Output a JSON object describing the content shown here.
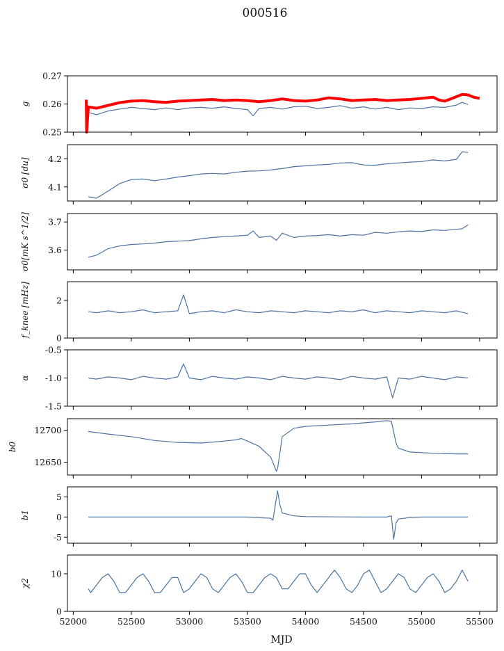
{
  "figure": {
    "title": "000516",
    "xlabel": "MJD",
    "x_ticks": [
      "52000",
      "52500",
      "53000",
      "53500",
      "54000",
      "54500",
      "55000",
      "55500"
    ],
    "colors": {
      "series": "#4c72a0",
      "highlight": "#ff0000",
      "axis": "#000000"
    }
  },
  "chart_data": [
    {
      "type": "line",
      "ylabel": "g",
      "ylim": [
        0.25,
        0.27
      ],
      "y_ticks": [
        "0.27",
        "0.26",
        "0.25"
      ],
      "xlim": [
        51950,
        55650
      ],
      "series": [
        {
          "name": "red",
          "x": [
            52112,
            52115,
            52130,
            52200,
            52300,
            52400,
            52500,
            52600,
            52700,
            52800,
            52900,
            53000,
            53100,
            53200,
            53300,
            53400,
            53500,
            53600,
            53700,
            53800,
            53900,
            54000,
            54100,
            54200,
            54300,
            54400,
            54500,
            54600,
            54700,
            54800,
            54900,
            55000,
            55100,
            55150,
            55200,
            55250,
            55300,
            55350,
            55400,
            55450,
            55500
          ],
          "y": [
            0.2615,
            0.25,
            0.259,
            0.2585,
            0.2595,
            0.2605,
            0.261,
            0.2612,
            0.2608,
            0.2606,
            0.261,
            0.2612,
            0.2614,
            0.2616,
            0.2612,
            0.2614,
            0.2612,
            0.2608,
            0.2612,
            0.2618,
            0.2612,
            0.261,
            0.2614,
            0.2622,
            0.2618,
            0.2612,
            0.2614,
            0.2616,
            0.2612,
            0.2614,
            0.2616,
            0.262,
            0.2624,
            0.2614,
            0.261,
            0.2618,
            0.2626,
            0.2634,
            0.2632,
            0.2624,
            0.262
          ]
        },
        {
          "name": "blue",
          "x": [
            52130,
            52200,
            52300,
            52400,
            52500,
            52600,
            52700,
            52800,
            52900,
            53000,
            53100,
            53200,
            53300,
            53400,
            53500,
            53550,
            53600,
            53700,
            53800,
            53900,
            54000,
            54100,
            54200,
            54300,
            54400,
            54500,
            54600,
            54700,
            54800,
            54900,
            55000,
            55100,
            55200,
            55300,
            55350,
            55400
          ],
          "y": [
            0.257,
            0.2562,
            0.2575,
            0.2582,
            0.2588,
            0.2584,
            0.258,
            0.2586,
            0.258,
            0.2586,
            0.2588,
            0.2585,
            0.259,
            0.2584,
            0.258,
            0.2558,
            0.2584,
            0.2588,
            0.2582,
            0.259,
            0.2592,
            0.2584,
            0.2588,
            0.2594,
            0.2585,
            0.259,
            0.2582,
            0.2588,
            0.258,
            0.2586,
            0.2584,
            0.259,
            0.2588,
            0.2596,
            0.2606,
            0.2598
          ]
        }
      ]
    },
    {
      "type": "line",
      "ylabel": "σ0 [du]",
      "ylim": [
        4.05,
        4.25
      ],
      "y_ticks": [
        "4.2",
        "4.1"
      ],
      "series": [
        {
          "name": "blue",
          "x": [
            52130,
            52200,
            52300,
            52400,
            52500,
            52600,
            52700,
            52800,
            52900,
            53000,
            53100,
            53200,
            53300,
            53400,
            53500,
            53600,
            53700,
            53800,
            53900,
            54000,
            54100,
            54200,
            54300,
            54400,
            54500,
            54600,
            54700,
            54800,
            54900,
            55000,
            55100,
            55200,
            55300,
            55350,
            55400
          ],
          "y": [
            4.065,
            4.06,
            4.085,
            4.112,
            4.126,
            4.128,
            4.122,
            4.128,
            4.135,
            4.14,
            4.146,
            4.148,
            4.146,
            4.152,
            4.156,
            4.157,
            4.16,
            4.165,
            4.172,
            4.175,
            4.178,
            4.18,
            4.185,
            4.186,
            4.178,
            4.177,
            4.182,
            4.185,
            4.188,
            4.19,
            4.196,
            4.192,
            4.198,
            4.225,
            4.222
          ]
        }
      ]
    },
    {
      "type": "line",
      "ylabel": "σ0[mK s^1/2]",
      "ylim": [
        3.53,
        3.73
      ],
      "y_ticks": [
        "3.7",
        "3.6"
      ],
      "series": [
        {
          "name": "blue",
          "x": [
            52130,
            52200,
            52300,
            52400,
            52500,
            52600,
            52700,
            52800,
            52900,
            53000,
            53100,
            53200,
            53300,
            53400,
            53500,
            53550,
            53600,
            53700,
            53750,
            53800,
            53900,
            54000,
            54100,
            54200,
            54300,
            54400,
            54500,
            54600,
            54700,
            54800,
            54900,
            55000,
            55100,
            55200,
            55300,
            55350,
            55400
          ],
          "y": [
            3.575,
            3.582,
            3.605,
            3.615,
            3.62,
            3.622,
            3.625,
            3.63,
            3.632,
            3.634,
            3.64,
            3.645,
            3.648,
            3.65,
            3.653,
            3.668,
            3.645,
            3.65,
            3.635,
            3.66,
            3.645,
            3.65,
            3.652,
            3.655,
            3.65,
            3.655,
            3.653,
            3.663,
            3.66,
            3.665,
            3.668,
            3.666,
            3.672,
            3.67,
            3.674,
            3.676,
            3.69
          ]
        }
      ]
    },
    {
      "type": "line",
      "ylabel": "f_knee [mHz]",
      "ylim": [
        0,
        3
      ],
      "y_ticks": [
        "2",
        "0"
      ],
      "series": [
        {
          "name": "blue",
          "x": [
            52130,
            52200,
            52300,
            52400,
            52500,
            52600,
            52700,
            52800,
            52900,
            52950,
            53000,
            53100,
            53200,
            53300,
            53400,
            53500,
            53600,
            53700,
            53800,
            53900,
            54000,
            54100,
            54200,
            54300,
            54400,
            54500,
            54600,
            54700,
            54800,
            54900,
            55000,
            55100,
            55200,
            55300,
            55400
          ],
          "y": [
            1.4,
            1.35,
            1.45,
            1.35,
            1.4,
            1.5,
            1.35,
            1.4,
            1.45,
            2.3,
            1.3,
            1.4,
            1.45,
            1.35,
            1.5,
            1.4,
            1.35,
            1.45,
            1.4,
            1.35,
            1.45,
            1.4,
            1.35,
            1.45,
            1.4,
            1.5,
            1.35,
            1.45,
            1.4,
            1.35,
            1.45,
            1.4,
            1.35,
            1.45,
            1.3
          ]
        }
      ]
    },
    {
      "type": "line",
      "ylabel": "α",
      "ylim": [
        -1.5,
        -0.5
      ],
      "y_ticks": [
        "-0.5",
        "-1.0",
        "-1.5"
      ],
      "series": [
        {
          "name": "blue",
          "x": [
            52130,
            52200,
            52300,
            52400,
            52500,
            52600,
            52700,
            52800,
            52900,
            52950,
            53000,
            53100,
            53200,
            53300,
            53400,
            53500,
            53600,
            53700,
            53800,
            53900,
            54000,
            54100,
            54200,
            54300,
            54400,
            54500,
            54600,
            54700,
            54750,
            54800,
            54900,
            55000,
            55100,
            55200,
            55300,
            55400
          ],
          "y": [
            -1.0,
            -1.02,
            -0.98,
            -1.0,
            -1.03,
            -0.97,
            -1.0,
            -1.02,
            -0.98,
            -0.75,
            -1.0,
            -1.03,
            -0.97,
            -1.0,
            -1.02,
            -0.98,
            -1.0,
            -1.03,
            -0.97,
            -1.0,
            -1.02,
            -0.98,
            -1.0,
            -1.03,
            -0.97,
            -1.0,
            -1.02,
            -0.98,
            -1.35,
            -1.0,
            -1.02,
            -0.97,
            -1.0,
            -1.03,
            -0.98,
            -1.0
          ]
        }
      ]
    },
    {
      "type": "line",
      "ylabel": "b0",
      "ylim": [
        12630,
        12718
      ],
      "y_ticks": [
        "12700",
        "12650"
      ],
      "series": [
        {
          "name": "blue",
          "x": [
            52130,
            52300,
            52500,
            52700,
            52900,
            53100,
            53300,
            53400,
            53450,
            53500,
            53600,
            53700,
            53750,
            53760,
            53800,
            53900,
            54000,
            54200,
            54400,
            54600,
            54700,
            54740,
            54780,
            54800,
            54900,
            55100,
            55300,
            55400
          ],
          "y": [
            12698,
            12694,
            12690,
            12684,
            12681,
            12680,
            12683,
            12685,
            12687,
            12683,
            12675,
            12658,
            12636,
            12640,
            12690,
            12703,
            12706,
            12708,
            12710,
            12713,
            12715,
            12714,
            12680,
            12672,
            12666,
            12664,
            12663,
            12663
          ]
        }
      ]
    },
    {
      "type": "line",
      "ylabel": "b1",
      "ylim": [
        -6.5,
        7.5
      ],
      "y_ticks": [
        "5",
        "0",
        "-5"
      ],
      "series": [
        {
          "name": "blue",
          "x": [
            52130,
            52500,
            53000,
            53500,
            53700,
            53720,
            53740,
            53760,
            53780,
            53800,
            53900,
            54000,
            54500,
            54700,
            54740,
            54760,
            54780,
            54800,
            54900,
            55000,
            55400
          ],
          "y": [
            0.0,
            0.0,
            0.0,
            0.0,
            -0.3,
            -0.8,
            3.0,
            6.5,
            3.0,
            1.0,
            0.3,
            0.1,
            0.0,
            0.0,
            0.3,
            -5.5,
            -1.5,
            -0.5,
            -0.1,
            0.0,
            0.0
          ]
        }
      ]
    },
    {
      "type": "line",
      "ylabel": "χ2",
      "ylim": [
        0,
        15
      ],
      "y_ticks": [
        "10",
        "0"
      ],
      "series": [
        {
          "name": "blue",
          "x": [
            52130,
            52150,
            52200,
            52250,
            52300,
            52350,
            52400,
            52450,
            52500,
            52550,
            52600,
            52650,
            52700,
            52750,
            52800,
            52850,
            52900,
            52950,
            53000,
            53050,
            53100,
            53150,
            53200,
            53250,
            53300,
            53350,
            53400,
            53450,
            53500,
            53550,
            53600,
            53650,
            53700,
            53750,
            53800,
            53850,
            53900,
            53950,
            54000,
            54050,
            54100,
            54150,
            54200,
            54250,
            54300,
            54350,
            54400,
            54450,
            54500,
            54550,
            54600,
            54650,
            54700,
            54750,
            54800,
            54850,
            54900,
            54950,
            55000,
            55050,
            55100,
            55150,
            55200,
            55250,
            55300,
            55350,
            55400
          ],
          "y": [
            6,
            5,
            7,
            9,
            10,
            8,
            5,
            5,
            7,
            9,
            10,
            8,
            5,
            5,
            7,
            9,
            9,
            5,
            6,
            8,
            10,
            9,
            6,
            5,
            7,
            9,
            10,
            8,
            5,
            5,
            7,
            9,
            10,
            9,
            6,
            6,
            8,
            10,
            10,
            7,
            5,
            7,
            9,
            11,
            9,
            6,
            5,
            7,
            10,
            11,
            8,
            5,
            6,
            8,
            10,
            9,
            6,
            5,
            7,
            9,
            10,
            8,
            5,
            6,
            8,
            11,
            8
          ]
        }
      ]
    }
  ]
}
